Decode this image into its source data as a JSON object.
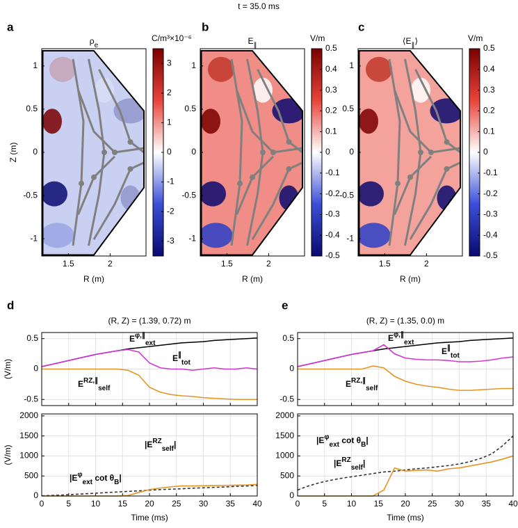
{
  "title": "t = 35.0 ms",
  "chart_data": [
    {
      "type": "heatmap",
      "panel_label": "a",
      "title": [
        {
          "text": "ρ"
        },
        {
          "text": "e",
          "pos": "sub"
        }
      ],
      "xlabel": "R (m)",
      "ylabel": "Z (m)",
      "xlim": [
        1.18,
        2.43
      ],
      "ylim": [
        -1.2,
        1.2
      ],
      "xticks": [
        1.5,
        2
      ],
      "yticks": [
        -1,
        -0.5,
        0,
        0.5,
        1
      ],
      "colorbar_label": "C/m³×10⁻⁶",
      "clim": [
        -3.5,
        3.5
      ],
      "cticks": [
        -3,
        -2,
        -1,
        0,
        1,
        2,
        3
      ],
      "background": "#c9d0f2"
    },
    {
      "type": "heatmap",
      "panel_label": "b",
      "title": [
        {
          "text": "E"
        },
        {
          "text": "∥",
          "pos": "sub"
        }
      ],
      "xlabel": "R (m)",
      "xlim": [
        1.18,
        2.43
      ],
      "ylim": [
        -1.2,
        1.2
      ],
      "xticks": [
        1.5,
        2
      ],
      "yticks": [
        -1,
        -0.5,
        0,
        0.5,
        1
      ],
      "colorbar_label": "V/m",
      "clim": [
        -0.5,
        0.5
      ],
      "cticks": [
        -0.5,
        -0.4,
        -0.3,
        -0.2,
        -0.1,
        0,
        0.1,
        0.2,
        0.3,
        0.4,
        0.5
      ],
      "background": "#ef8d86"
    },
    {
      "type": "heatmap",
      "panel_label": "c",
      "title": [
        {
          "text": "⟨E"
        },
        {
          "text": "∥",
          "pos": "sub"
        },
        {
          "text": "⟩"
        }
      ],
      "xlabel": "R (m)",
      "xlim": [
        1.18,
        2.43
      ],
      "ylim": [
        -1.2,
        1.2
      ],
      "xticks": [
        1.5,
        2
      ],
      "yticks": [
        -1,
        -0.5,
        0,
        0.5,
        1
      ],
      "colorbar_label": "V/m",
      "clim": [
        -0.5,
        0.5
      ],
      "cticks": [
        -0.5,
        -0.4,
        -0.3,
        -0.2,
        -0.1,
        0,
        0.1,
        0.2,
        0.3,
        0.4,
        0.5
      ],
      "background": "#f3a39c"
    },
    {
      "type": "line",
      "panel_label": "d",
      "title": "(R, Z) = (1.39, 0.72) m",
      "ylabel": "(V/m)",
      "x": [
        0,
        2,
        4,
        6,
        8,
        10,
        12,
        14,
        16,
        18,
        20,
        22,
        24,
        26,
        28,
        30,
        32,
        34,
        36,
        38,
        40
      ],
      "xlim": [
        0,
        40
      ],
      "xticks": [
        0,
        5,
        10,
        15,
        20,
        25,
        30,
        35,
        40
      ],
      "xtick_labels": false,
      "ylim": [
        -0.6,
        0.6
      ],
      "yticks": [
        -0.5,
        0,
        0.5
      ],
      "grid": true,
      "series": [
        {
          "color": "#000000",
          "values": [
            0.04,
            0.08,
            0.12,
            0.16,
            0.2,
            0.24,
            0.27,
            0.3,
            0.33,
            0.35,
            0.37,
            0.39,
            0.41,
            0.43,
            0.44,
            0.45,
            0.47,
            0.48,
            0.49,
            0.5,
            0.51
          ]
        },
        {
          "color": "#d633d6",
          "values": [
            0.04,
            0.08,
            0.12,
            0.16,
            0.2,
            0.24,
            0.27,
            0.3,
            0.32,
            0.28,
            0.1,
            0.02,
            0.0,
            0.0,
            -0.02,
            0.0,
            0.02,
            0.0,
            0.0,
            0.02,
            0.0
          ]
        },
        {
          "color": "#e69420",
          "values": [
            0,
            0,
            0,
            0,
            0,
            0,
            0,
            0,
            -0.02,
            -0.1,
            -0.3,
            -0.38,
            -0.42,
            -0.44,
            -0.45,
            -0.47,
            -0.48,
            -0.49,
            -0.5,
            -0.5,
            -0.5
          ]
        }
      ],
      "annotations": [
        {
          "color": "#000000",
          "segments": [
            {
              "text": "E"
            },
            {
              "text": "φ,∥",
              "pos": "sup"
            },
            {
              "text": "ext",
              "pos": "sub"
            }
          ]
        },
        {
          "color": "#d633d6",
          "segments": [
            {
              "text": "E"
            },
            {
              "text": "∥",
              "pos": "sup"
            },
            {
              "text": "tot",
              "pos": "sub"
            }
          ]
        },
        {
          "color": "#e69420",
          "segments": [
            {
              "text": "E"
            },
            {
              "text": "RZ,∥",
              "pos": "sup"
            },
            {
              "text": "self",
              "pos": "sub"
            }
          ]
        }
      ]
    },
    {
      "type": "line",
      "xlabel": "Time (ms)",
      "ylabel": "(V/m)",
      "x": [
        0,
        2,
        4,
        6,
        8,
        10,
        12,
        14,
        16,
        18,
        20,
        22,
        24,
        26,
        28,
        30,
        32,
        34,
        36,
        38,
        40
      ],
      "xlim": [
        0,
        40
      ],
      "xticks": [
        0,
        5,
        10,
        15,
        20,
        25,
        30,
        35,
        40
      ],
      "xtick_labels": true,
      "ylim": [
        0,
        2050
      ],
      "yticks": [
        0,
        500,
        1000,
        1500,
        2000
      ],
      "grid": true,
      "series": [
        {
          "color": "#333333",
          "dash": true,
          "values": [
            5,
            15,
            25,
            40,
            55,
            70,
            85,
            100,
            115,
            130,
            145,
            160,
            170,
            180,
            195,
            205,
            215,
            225,
            240,
            250,
            265
          ]
        },
        {
          "color": "#e69420",
          "values": [
            0,
            0,
            0,
            0,
            0,
            0,
            0,
            0,
            10,
            90,
            160,
            200,
            230,
            250,
            250,
            255,
            260,
            265,
            270,
            275,
            290
          ]
        }
      ],
      "annotations": [
        {
          "color": "#333333",
          "segments": [
            {
              "text": "|E"
            },
            {
              "text": "φ",
              "pos": "sup"
            },
            {
              "text": "ext",
              "pos": "sub"
            },
            {
              "text": " cot θ"
            },
            {
              "text": "B",
              "pos": "sub"
            },
            {
              "text": "|"
            }
          ]
        },
        {
          "color": "#e69420",
          "segments": [
            {
              "text": "|E"
            },
            {
              "text": "RZ",
              "pos": "sup"
            },
            {
              "text": "self",
              "pos": "sub"
            },
            {
              "text": "|"
            }
          ]
        }
      ]
    },
    {
      "type": "line",
      "panel_label": "e",
      "title": "(R, Z) = (1.35, 0.0) m",
      "x": [
        0,
        2,
        4,
        6,
        8,
        10,
        12,
        14,
        16,
        18,
        20,
        22,
        24,
        26,
        28,
        30,
        32,
        34,
        36,
        38,
        40
      ],
      "xlim": [
        0,
        40
      ],
      "xticks": [
        0,
        5,
        10,
        15,
        20,
        25,
        30,
        35,
        40
      ],
      "xtick_labels": false,
      "ylim": [
        -0.6,
        0.6
      ],
      "yticks": [
        -0.5,
        0,
        0.5
      ],
      "grid": true,
      "series": [
        {
          "color": "#000000",
          "values": [
            0.04,
            0.08,
            0.12,
            0.16,
            0.2,
            0.24,
            0.27,
            0.3,
            0.33,
            0.35,
            0.37,
            0.39,
            0.41,
            0.43,
            0.44,
            0.45,
            0.47,
            0.48,
            0.49,
            0.5,
            0.51
          ]
        },
        {
          "color": "#d633d6",
          "values": [
            0.04,
            0.08,
            0.12,
            0.16,
            0.2,
            0.24,
            0.27,
            0.3,
            0.4,
            0.25,
            0.18,
            0.16,
            0.15,
            0.15,
            0.14,
            0.12,
            0.12,
            0.13,
            0.15,
            0.18,
            0.2
          ]
        },
        {
          "color": "#e69420",
          "values": [
            0,
            0,
            0,
            0,
            0,
            0,
            0,
            0.05,
            0.02,
            -0.12,
            -0.2,
            -0.25,
            -0.28,
            -0.3,
            -0.33,
            -0.35,
            -0.35,
            -0.34,
            -0.33,
            -0.32,
            -0.32
          ]
        }
      ],
      "annotations": [
        {
          "color": "#000000",
          "segments": [
            {
              "text": "E"
            },
            {
              "text": "φ,∥",
              "pos": "sup"
            },
            {
              "text": "ext",
              "pos": "sub"
            }
          ]
        },
        {
          "color": "#d633d6",
          "segments": [
            {
              "text": "E"
            },
            {
              "text": "∥",
              "pos": "sup"
            },
            {
              "text": "tot",
              "pos": "sub"
            }
          ]
        },
        {
          "color": "#e69420",
          "segments": [
            {
              "text": "E"
            },
            {
              "text": "RZ,∥",
              "pos": "sup"
            },
            {
              "text": "self",
              "pos": "sub"
            }
          ]
        }
      ]
    },
    {
      "type": "line",
      "xlabel": "Time (ms)",
      "x": [
        0,
        2,
        4,
        6,
        8,
        10,
        12,
        14,
        16,
        18,
        20,
        22,
        24,
        26,
        28,
        30,
        32,
        34,
        36,
        38,
        40
      ],
      "xlim": [
        0,
        40
      ],
      "xticks": [
        0,
        5,
        10,
        15,
        20,
        25,
        30,
        35,
        40
      ],
      "xtick_labels": true,
      "ylim": [
        0,
        2050
      ],
      "yticks": [
        0,
        500,
        1000,
        1500,
        2000
      ],
      "grid": true,
      "series": [
        {
          "color": "#333333",
          "dash": true,
          "values": [
            150,
            250,
            330,
            390,
            440,
            480,
            520,
            560,
            600,
            620,
            650,
            680,
            700,
            730,
            760,
            800,
            860,
            940,
            1050,
            1250,
            1500
          ]
        },
        {
          "color": "#e69420",
          "values": [
            0,
            0,
            0,
            0,
            0,
            0,
            0,
            0,
            150,
            700,
            620,
            640,
            650,
            620,
            680,
            700,
            750,
            800,
            850,
            920,
            1000
          ]
        }
      ],
      "annotations": [
        {
          "color": "#333333",
          "segments": [
            {
              "text": "|E"
            },
            {
              "text": "φ",
              "pos": "sup"
            },
            {
              "text": "ext",
              "pos": "sub"
            },
            {
              "text": " cot θ"
            },
            {
              "text": "B",
              "pos": "sub"
            },
            {
              "text": "|"
            }
          ]
        },
        {
          "color": "#e69420",
          "segments": [
            {
              "text": "|E"
            },
            {
              "text": "RZ",
              "pos": "sup"
            },
            {
              "text": "self",
              "pos": "sub"
            },
            {
              "text": "|"
            }
          ]
        }
      ]
    }
  ]
}
